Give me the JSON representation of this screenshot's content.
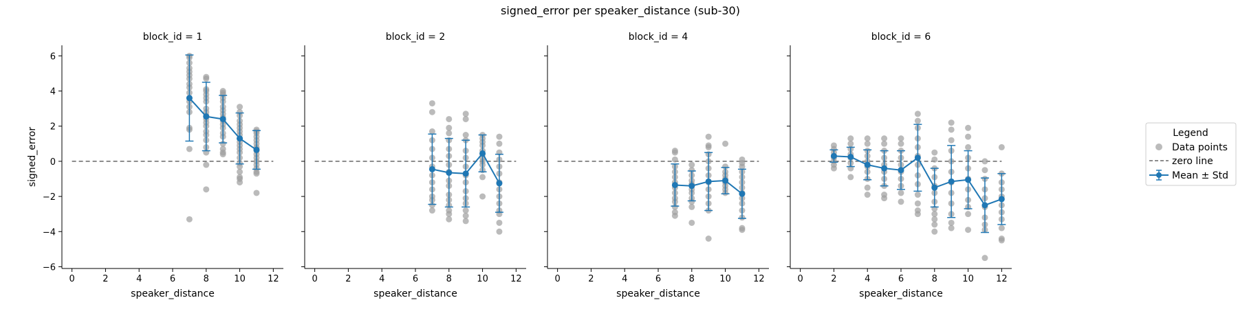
{
  "figure": {
    "title": "signed_error per speaker_distance (sub-30)",
    "legend": {
      "title": "Legend",
      "placement": "right",
      "entries": [
        {
          "label": "Data points",
          "kind": "scatter"
        },
        {
          "label": "zero line",
          "kind": "dashed"
        },
        {
          "label": "Mean ± Std",
          "kind": "errorbar"
        }
      ]
    },
    "colors": {
      "points": "#9e9e9e",
      "mean": "#1f77b4",
      "zero": "#666666"
    }
  },
  "chart_data": [
    {
      "type": "scatter",
      "title": "block_id = 1",
      "xlabel": "speaker_distance",
      "ylabel": "signed_error",
      "xlim": [
        -0.6,
        12.6
      ],
      "ylim": [
        -6.1,
        6.6
      ],
      "xticks": [
        0,
        2,
        4,
        6,
        8,
        10,
        12
      ],
      "yticks": [
        -6,
        -4,
        -2,
        0,
        2,
        4,
        6
      ],
      "points": [
        {
          "x": 7,
          "y": [
            6.0,
            5.9,
            5.6,
            5.3,
            5.1,
            4.9,
            4.7,
            4.4,
            4.2,
            3.9,
            3.6,
            3.4,
            3.1,
            2.8,
            1.9,
            1.8,
            0.7,
            -3.3
          ]
        },
        {
          "x": 8,
          "y": [
            4.8,
            4.7,
            4.1,
            4.0,
            3.8,
            3.6,
            3.4,
            3.0,
            2.8,
            2.6,
            2.4,
            2.2,
            2.0,
            1.7,
            1.5,
            1.2,
            0.8,
            0.5,
            -0.2,
            -1.6
          ]
        },
        {
          "x": 9,
          "y": [
            4.0,
            3.9,
            3.8,
            3.6,
            3.4,
            3.1,
            2.9,
            2.7,
            2.5,
            2.3,
            2.1,
            1.9,
            1.6,
            1.4,
            1.0,
            0.7,
            0.5,
            0.4
          ]
        },
        {
          "x": 10,
          "y": [
            3.1,
            2.8,
            2.6,
            2.3,
            2.1,
            1.9,
            1.7,
            1.5,
            1.3,
            1.1,
            0.9,
            0.7,
            0.5,
            0.2,
            -0.1,
            -0.3,
            -0.6,
            -0.9,
            -1.0,
            -1.2
          ]
        },
        {
          "x": 11,
          "y": [
            1.8,
            1.7,
            1.6,
            1.4,
            1.2,
            1.0,
            0.8,
            0.7,
            0.6,
            0.4,
            0.2,
            0.0,
            -0.2,
            -0.4,
            -0.6,
            -0.7,
            -1.8
          ]
        }
      ],
      "mean": [
        {
          "x": 7,
          "y": 3.6,
          "std": 2.45
        },
        {
          "x": 8,
          "y": 2.55,
          "std": 1.95
        },
        {
          "x": 9,
          "y": 2.4,
          "std": 1.35
        },
        {
          "x": 10,
          "y": 1.3,
          "std": 1.45
        },
        {
          "x": 11,
          "y": 0.65,
          "std": 1.1
        }
      ]
    },
    {
      "type": "scatter",
      "title": "block_id = 2",
      "xlabel": "speaker_distance",
      "ylabel": "",
      "xlim": [
        -0.6,
        12.6
      ],
      "ylim": [
        -6.1,
        6.6
      ],
      "xticks": [
        0,
        2,
        4,
        6,
        8,
        10,
        12
      ],
      "yticks": [
        -6,
        -4,
        -2,
        0,
        2,
        4,
        6
      ],
      "points": [
        {
          "x": 7,
          "y": [
            3.3,
            2.8,
            1.7,
            1.2,
            0.7,
            0.2,
            -0.3,
            -0.8,
            -1.2,
            -1.6,
            -2.0,
            -2.2,
            -2.5,
            -2.8
          ]
        },
        {
          "x": 8,
          "y": [
            2.4,
            1.9,
            1.6,
            1.2,
            0.7,
            0.3,
            -0.2,
            -0.6,
            -1.1,
            -1.4,
            -1.9,
            -2.2,
            -2.5,
            -2.8,
            -3.0,
            -3.3
          ]
        },
        {
          "x": 9,
          "y": [
            2.7,
            2.4,
            1.5,
            1.2,
            0.6,
            0.2,
            -0.3,
            -0.8,
            -1.2,
            -1.7,
            -2.1,
            -2.4,
            -2.8,
            -3.1,
            -3.4
          ]
        },
        {
          "x": 10,
          "y": [
            1.5,
            1.3,
            1.1,
            0.9,
            0.6,
            0.4,
            0.2,
            0.0,
            -0.2,
            -0.5,
            -0.9,
            -2.0
          ]
        },
        {
          "x": 11,
          "y": [
            1.4,
            1.0,
            0.5,
            0.1,
            -0.3,
            -0.7,
            -1.2,
            -1.6,
            -2.0,
            -2.4,
            -2.8,
            -3.0,
            -3.5,
            -4.0
          ]
        }
      ],
      "mean": [
        {
          "x": 7,
          "y": -0.45,
          "std": 2.0
        },
        {
          "x": 8,
          "y": -0.65,
          "std": 1.95
        },
        {
          "x": 9,
          "y": -0.7,
          "std": 1.9
        },
        {
          "x": 10,
          "y": 0.45,
          "std": 1.05
        },
        {
          "x": 11,
          "y": -1.25,
          "std": 1.65
        }
      ]
    },
    {
      "type": "scatter",
      "title": "block_id = 4",
      "xlabel": "speaker_distance",
      "ylabel": "",
      "xlim": [
        -0.6,
        12.6
      ],
      "ylim": [
        -6.1,
        6.6
      ],
      "xticks": [
        0,
        2,
        4,
        6,
        8,
        10,
        12
      ],
      "yticks": [
        -6,
        -4,
        -2,
        0,
        2,
        4,
        6
      ],
      "points": [
        {
          "x": 7,
          "y": [
            0.6,
            0.5,
            0.1,
            -0.3,
            -0.6,
            -0.9,
            -1.2,
            -1.5,
            -1.8,
            -2.1,
            -2.3,
            -2.6,
            -2.9,
            -3.1
          ]
        },
        {
          "x": 8,
          "y": [
            -0.2,
            -0.5,
            -0.8,
            -1.1,
            -1.3,
            -1.6,
            -1.8,
            -2.1,
            -2.3,
            -2.6,
            -3.5
          ]
        },
        {
          "x": 9,
          "y": [
            1.4,
            0.9,
            0.8,
            0.4,
            0.0,
            -0.4,
            -0.8,
            -1.2,
            -1.6,
            -2.0,
            -2.4,
            -2.8,
            -4.4
          ]
        },
        {
          "x": 10,
          "y": [
            1.0,
            -0.3,
            -0.6,
            -0.8,
            -1.0,
            -1.2,
            -1.4,
            -1.6,
            -1.8
          ]
        },
        {
          "x": 11,
          "y": [
            0.1,
            -0.1,
            -0.3,
            -0.6,
            -0.9,
            -1.2,
            -1.5,
            -1.8,
            -2.1,
            -2.4,
            -2.8,
            -3.2,
            -3.8,
            -3.9
          ]
        }
      ],
      "mean": [
        {
          "x": 7,
          "y": -1.35,
          "std": 1.2
        },
        {
          "x": 8,
          "y": -1.4,
          "std": 0.85
        },
        {
          "x": 9,
          "y": -1.15,
          "std": 1.65
        },
        {
          "x": 10,
          "y": -1.1,
          "std": 0.75
        },
        {
          "x": 11,
          "y": -1.85,
          "std": 1.4
        }
      ]
    },
    {
      "type": "scatter",
      "title": "block_id = 6",
      "xlabel": "speaker_distance",
      "ylabel": "",
      "xlim": [
        -0.6,
        12.6
      ],
      "ylim": [
        -6.1,
        6.6
      ],
      "xticks": [
        0,
        2,
        4,
        6,
        8,
        10,
        12
      ],
      "yticks": [
        -6,
        -4,
        -2,
        0,
        2,
        4,
        6
      ],
      "points": [
        {
          "x": 2,
          "y": [
            0.9,
            0.7,
            0.5,
            0.3,
            0.2,
            0.0,
            -0.2,
            -0.4
          ]
        },
        {
          "x": 3,
          "y": [
            1.3,
            1.0,
            0.7,
            0.4,
            0.2,
            -0.1,
            -0.4,
            -0.9
          ]
        },
        {
          "x": 4,
          "y": [
            1.3,
            1.0,
            0.6,
            0.3,
            0.0,
            -0.3,
            -0.6,
            -1.0,
            -1.5,
            -1.9
          ]
        },
        {
          "x": 5,
          "y": [
            1.3,
            1.0,
            0.6,
            0.2,
            -0.2,
            -0.6,
            -1.0,
            -1.4,
            -1.9,
            -2.1
          ]
        },
        {
          "x": 6,
          "y": [
            1.3,
            1.0,
            0.6,
            0.2,
            -0.2,
            -0.6,
            -1.0,
            -1.4,
            -1.8,
            -2.3
          ]
        },
        {
          "x": 7,
          "y": [
            2.7,
            2.3,
            1.9,
            1.3,
            0.8,
            0.3,
            -0.2,
            -0.8,
            -1.3,
            -1.9,
            -2.4,
            -2.8,
            -3.0
          ]
        },
        {
          "x": 8,
          "y": [
            0.5,
            0.1,
            -0.4,
            -0.9,
            -1.4,
            -1.8,
            -2.3,
            -2.7,
            -3.0,
            -3.3,
            -3.6,
            -4.0
          ]
        },
        {
          "x": 9,
          "y": [
            2.2,
            1.8,
            1.2,
            0.6,
            0.0,
            -0.6,
            -1.2,
            -1.8,
            -2.4,
            -3.0,
            -3.5,
            -3.8
          ]
        },
        {
          "x": 10,
          "y": [
            1.9,
            1.4,
            0.8,
            0.2,
            -0.4,
            -1.0,
            -1.6,
            -2.2,
            -2.6,
            -3.0,
            -3.9
          ]
        },
        {
          "x": 11,
          "y": [
            0.0,
            -0.5,
            -1.0,
            -1.6,
            -2.1,
            -2.6,
            -3.2,
            -3.6,
            -3.9,
            -5.5
          ]
        },
        {
          "x": 12,
          "y": [
            0.8,
            -0.7,
            -1.2,
            -1.6,
            -2.0,
            -2.5,
            -2.9,
            -3.3,
            -3.8,
            -4.4,
            -4.5
          ]
        }
      ],
      "mean": [
        {
          "x": 2,
          "y": 0.3,
          "std": 0.35
        },
        {
          "x": 3,
          "y": 0.25,
          "std": 0.55
        },
        {
          "x": 4,
          "y": -0.2,
          "std": 0.85
        },
        {
          "x": 5,
          "y": -0.4,
          "std": 1.0
        },
        {
          "x": 6,
          "y": -0.5,
          "std": 1.1
        },
        {
          "x": 7,
          "y": 0.2,
          "std": 1.9
        },
        {
          "x": 8,
          "y": -1.5,
          "std": 1.1
        },
        {
          "x": 9,
          "y": -1.15,
          "std": 2.05
        },
        {
          "x": 10,
          "y": -1.05,
          "std": 1.65
        },
        {
          "x": 11,
          "y": -2.5,
          "std": 1.55
        },
        {
          "x": 12,
          "y": -2.15,
          "std": 1.45
        }
      ]
    }
  ]
}
